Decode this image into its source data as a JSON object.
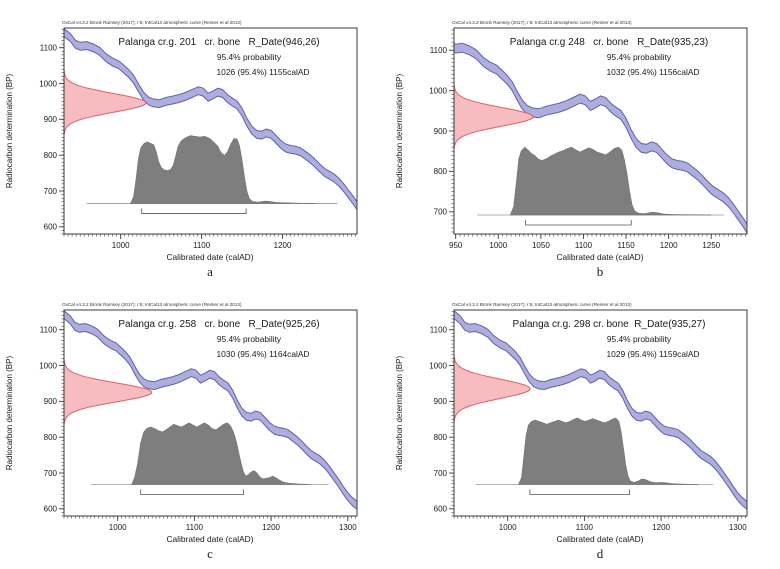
{
  "figure": {
    "attribution": "OxCal v4.3.2 Bronk Ramsey (2017); r:5; IntCal13 atmospheric curve (Reimer et al 2013)",
    "ylabel": "Radiocarbon determination (BP)",
    "xlabel": "Calibrated date (calAD)"
  },
  "colors": {
    "curve_fill": "#aeaedd",
    "curve_edge": "#5f5fae",
    "likelihood_fill": "#f7bcc0",
    "likelihood_edge": "#e06065",
    "posterior_fill": "#7e7e7e",
    "posterior_edge": "#6a6a6a",
    "baseline": "#9a9a9a",
    "axis": "#3c3c3c"
  },
  "calibration_curve": {
    "halfwidth_bp": 11,
    "points_calAD_BP": [
      [
        930,
        1142
      ],
      [
        938,
        1128
      ],
      [
        944,
        1110
      ],
      [
        950,
        1104
      ],
      [
        958,
        1106
      ],
      [
        966,
        1100
      ],
      [
        974,
        1090
      ],
      [
        982,
        1072
      ],
      [
        990,
        1060
      ],
      [
        998,
        1052
      ],
      [
        1004,
        1040
      ],
      [
        1010,
        1028
      ],
      [
        1016,
        1012
      ],
      [
        1022,
        988
      ],
      [
        1028,
        966
      ],
      [
        1034,
        952
      ],
      [
        1040,
        946
      ],
      [
        1048,
        944
      ],
      [
        1056,
        950
      ],
      [
        1064,
        954
      ],
      [
        1072,
        958
      ],
      [
        1080,
        964
      ],
      [
        1088,
        972
      ],
      [
        1096,
        980
      ],
      [
        1102,
        976
      ],
      [
        1108,
        962
      ],
      [
        1114,
        968
      ],
      [
        1120,
        976
      ],
      [
        1126,
        972
      ],
      [
        1132,
        958
      ],
      [
        1138,
        948
      ],
      [
        1144,
        940
      ],
      [
        1150,
        920
      ],
      [
        1156,
        892
      ],
      [
        1162,
        870
      ],
      [
        1168,
        858
      ],
      [
        1174,
        856
      ],
      [
        1180,
        862
      ],
      [
        1186,
        858
      ],
      [
        1192,
        844
      ],
      [
        1198,
        830
      ],
      [
        1204,
        820
      ],
      [
        1210,
        816
      ],
      [
        1216,
        814
      ],
      [
        1222,
        810
      ],
      [
        1228,
        800
      ],
      [
        1234,
        790
      ],
      [
        1240,
        778
      ],
      [
        1246,
        764
      ],
      [
        1252,
        752
      ],
      [
        1258,
        744
      ],
      [
        1264,
        736
      ],
      [
        1270,
        724
      ],
      [
        1276,
        708
      ],
      [
        1282,
        690
      ],
      [
        1288,
        672
      ],
      [
        1294,
        652
      ],
      [
        1300,
        634
      ],
      [
        1306,
        620
      ],
      [
        1312,
        610
      ]
    ]
  },
  "chart_data": [
    {
      "type": "area",
      "panel_letter": "a",
      "title": "Palanga cr.g. 201   cr. bone   R_Date(946,26)",
      "probability_label": "95.4% probability",
      "range_label": "1026 (95.4%) 1155calAD",
      "r_date_mean_bp": 946,
      "r_date_sigma": 26,
      "range_calAD": [
        1026,
        1155
      ],
      "xlim": [
        930,
        1292
      ],
      "ylim": [
        580,
        1155
      ],
      "x_major_ticks": [
        1000,
        1100,
        1200
      ],
      "x_minor_step": 5,
      "y_major_ticks": [
        600,
        700,
        800,
        900,
        1000,
        1100
      ],
      "y_minor_step": 10,
      "baseline_bp": 665,
      "baseline_span": [
        958,
        1268
      ],
      "likelihood_amp": 0.28,
      "posterior": [
        [
          1012,
          0
        ],
        [
          1016,
          0.1
        ],
        [
          1019,
          0.35
        ],
        [
          1022,
          0.65
        ],
        [
          1025,
          0.8
        ],
        [
          1029,
          0.86
        ],
        [
          1033,
          0.88
        ],
        [
          1037,
          0.86
        ],
        [
          1041,
          0.84
        ],
        [
          1044,
          0.74
        ],
        [
          1047,
          0.6
        ],
        [
          1050,
          0.52
        ],
        [
          1054,
          0.48
        ],
        [
          1058,
          0.47
        ],
        [
          1062,
          0.49
        ],
        [
          1065,
          0.55
        ],
        [
          1068,
          0.68
        ],
        [
          1071,
          0.82
        ],
        [
          1075,
          0.9
        ],
        [
          1080,
          0.94
        ],
        [
          1086,
          0.97
        ],
        [
          1092,
          0.96
        ],
        [
          1098,
          0.95
        ],
        [
          1104,
          0.96
        ],
        [
          1110,
          0.93
        ],
        [
          1115,
          0.88
        ],
        [
          1120,
          0.82
        ],
        [
          1124,
          0.73
        ],
        [
          1128,
          0.69
        ],
        [
          1132,
          0.74
        ],
        [
          1136,
          0.85
        ],
        [
          1140,
          0.93
        ],
        [
          1144,
          0.92
        ],
        [
          1147,
          0.82
        ],
        [
          1150,
          0.62
        ],
        [
          1153,
          0.38
        ],
        [
          1156,
          0.18
        ],
        [
          1159,
          0.07
        ],
        [
          1163,
          0.03
        ],
        [
          1170,
          0.02
        ],
        [
          1178,
          0.035
        ],
        [
          1184,
          0.03
        ],
        [
          1192,
          0.015
        ],
        [
          1205,
          0.01
        ],
        [
          1220,
          0.005
        ],
        [
          1240,
          0
        ]
      ]
    },
    {
      "type": "area",
      "panel_letter": "b",
      "title": "Palanga cr.g 248   cr. bone   R_Date(935,23)",
      "probability_label": "95.4% probability",
      "range_label": "1032 (95.4%) 1156calAD",
      "r_date_mean_bp": 935,
      "r_date_sigma": 23,
      "range_calAD": [
        1032,
        1156
      ],
      "xlim": [
        948,
        1292
      ],
      "ylim": [
        645,
        1155
      ],
      "x_major_ticks": [
        950,
        1000,
        1050,
        1100,
        1150,
        1200,
        1250
      ],
      "x_minor_step": 5,
      "y_major_ticks": [
        700,
        800,
        900,
        1000,
        1100
      ],
      "y_minor_step": 10,
      "baseline_bp": 692,
      "baseline_span": [
        975,
        1265
      ],
      "likelihood_amp": 0.27,
      "posterior": [
        [
          1014,
          0
        ],
        [
          1018,
          0.12
        ],
        [
          1021,
          0.45
        ],
        [
          1024,
          0.8
        ],
        [
          1027,
          0.92
        ],
        [
          1031,
          0.97
        ],
        [
          1035,
          0.93
        ],
        [
          1039,
          0.88
        ],
        [
          1043,
          0.85
        ],
        [
          1047,
          0.8
        ],
        [
          1051,
          0.78
        ],
        [
          1056,
          0.8
        ],
        [
          1061,
          0.84
        ],
        [
          1066,
          0.87
        ],
        [
          1071,
          0.9
        ],
        [
          1076,
          0.92
        ],
        [
          1081,
          0.95
        ],
        [
          1086,
          0.97
        ],
        [
          1091,
          0.93
        ],
        [
          1096,
          0.9
        ],
        [
          1101,
          0.93
        ],
        [
          1106,
          0.96
        ],
        [
          1111,
          0.94
        ],
        [
          1116,
          0.9
        ],
        [
          1121,
          0.88
        ],
        [
          1126,
          0.86
        ],
        [
          1131,
          0.9
        ],
        [
          1136,
          0.95
        ],
        [
          1141,
          0.97
        ],
        [
          1145,
          0.93
        ],
        [
          1148,
          0.8
        ],
        [
          1151,
          0.6
        ],
        [
          1154,
          0.35
        ],
        [
          1157,
          0.15
        ],
        [
          1160,
          0.06
        ],
        [
          1165,
          0.025
        ],
        [
          1172,
          0.02
        ],
        [
          1180,
          0.04
        ],
        [
          1186,
          0.035
        ],
        [
          1194,
          0.015
        ],
        [
          1205,
          0.008
        ],
        [
          1225,
          0.004
        ],
        [
          1250,
          0
        ]
      ]
    },
    {
      "type": "area",
      "panel_letter": "c",
      "title": "Palanga cr.g. 258   cr. bone   R_Date(925,26)",
      "probability_label": "95.4% probability",
      "range_label": "1030 (95.4%) 1164calAD",
      "r_date_mean_bp": 925,
      "r_date_sigma": 26,
      "range_calAD": [
        1030,
        1164
      ],
      "xlim": [
        930,
        1312
      ],
      "ylim": [
        580,
        1155
      ],
      "x_major_ticks": [
        1000,
        1100,
        1200,
        1300
      ],
      "x_minor_step": 5,
      "y_major_ticks": [
        600,
        700,
        800,
        900,
        1000,
        1100
      ],
      "y_minor_step": 10,
      "baseline_bp": 668,
      "baseline_span": [
        965,
        1275
      ],
      "likelihood_amp": 0.3,
      "posterior": [
        [
          1018,
          0
        ],
        [
          1022,
          0.1
        ],
        [
          1026,
          0.3
        ],
        [
          1030,
          0.6
        ],
        [
          1034,
          0.75
        ],
        [
          1038,
          0.8
        ],
        [
          1043,
          0.82
        ],
        [
          1048,
          0.8
        ],
        [
          1053,
          0.77
        ],
        [
          1058,
          0.75
        ],
        [
          1063,
          0.78
        ],
        [
          1068,
          0.82
        ],
        [
          1073,
          0.86
        ],
        [
          1078,
          0.84
        ],
        [
          1083,
          0.82
        ],
        [
          1088,
          0.85
        ],
        [
          1093,
          0.88
        ],
        [
          1098,
          0.85
        ],
        [
          1103,
          0.82
        ],
        [
          1108,
          0.85
        ],
        [
          1113,
          0.88
        ],
        [
          1118,
          0.85
        ],
        [
          1123,
          0.8
        ],
        [
          1128,
          0.78
        ],
        [
          1133,
          0.82
        ],
        [
          1138,
          0.86
        ],
        [
          1143,
          0.88
        ],
        [
          1147,
          0.84
        ],
        [
          1151,
          0.75
        ],
        [
          1155,
          0.6
        ],
        [
          1158,
          0.45
        ],
        [
          1161,
          0.3
        ],
        [
          1164,
          0.18
        ],
        [
          1167,
          0.12
        ],
        [
          1170,
          0.14
        ],
        [
          1174,
          0.18
        ],
        [
          1178,
          0.2
        ],
        [
          1182,
          0.16
        ],
        [
          1186,
          0.1
        ],
        [
          1190,
          0.08
        ],
        [
          1194,
          0.09
        ],
        [
          1198,
          0.1
        ],
        [
          1202,
          0.12
        ],
        [
          1206,
          0.1
        ],
        [
          1210,
          0.07
        ],
        [
          1215,
          0.04
        ],
        [
          1222,
          0.02
        ],
        [
          1232,
          0.01
        ],
        [
          1250,
          0
        ]
      ]
    },
    {
      "type": "area",
      "panel_letter": "d",
      "title": "Palanga cr.g. 298 cr. bone  R_Date(935,27)",
      "probability_label": "95.4% probability",
      "range_label": "1029 (95.4%) 1159calAD",
      "r_date_mean_bp": 935,
      "r_date_sigma": 27,
      "range_calAD": [
        1029,
        1159
      ],
      "xlim": [
        930,
        1312
      ],
      "ylim": [
        580,
        1155
      ],
      "x_major_ticks": [
        1000,
        1100,
        1200,
        1300
      ],
      "x_minor_step": 5,
      "y_major_ticks": [
        600,
        700,
        800,
        900,
        1000,
        1100
      ],
      "y_minor_step": 10,
      "baseline_bp": 668,
      "baseline_span": [
        958,
        1268
      ],
      "likelihood_amp": 0.26,
      "posterior": [
        [
          1014,
          0
        ],
        [
          1018,
          0.1
        ],
        [
          1021,
          0.4
        ],
        [
          1024,
          0.7
        ],
        [
          1027,
          0.85
        ],
        [
          1031,
          0.9
        ],
        [
          1036,
          0.92
        ],
        [
          1041,
          0.9
        ],
        [
          1046,
          0.88
        ],
        [
          1051,
          0.86
        ],
        [
          1056,
          0.88
        ],
        [
          1061,
          0.9
        ],
        [
          1066,
          0.92
        ],
        [
          1071,
          0.9
        ],
        [
          1076,
          0.88
        ],
        [
          1081,
          0.9
        ],
        [
          1086,
          0.93
        ],
        [
          1091,
          0.95
        ],
        [
          1096,
          0.92
        ],
        [
          1101,
          0.9
        ],
        [
          1106,
          0.92
        ],
        [
          1111,
          0.94
        ],
        [
          1116,
          0.92
        ],
        [
          1121,
          0.9
        ],
        [
          1126,
          0.88
        ],
        [
          1131,
          0.9
        ],
        [
          1136,
          0.93
        ],
        [
          1141,
          0.95
        ],
        [
          1145,
          0.9
        ],
        [
          1148,
          0.75
        ],
        [
          1151,
          0.52
        ],
        [
          1154,
          0.28
        ],
        [
          1157,
          0.12
        ],
        [
          1160,
          0.05
        ],
        [
          1165,
          0.03
        ],
        [
          1170,
          0.05
        ],
        [
          1175,
          0.08
        ],
        [
          1180,
          0.07
        ],
        [
          1186,
          0.04
        ],
        [
          1192,
          0.025
        ],
        [
          1200,
          0.03
        ],
        [
          1206,
          0.025
        ],
        [
          1214,
          0.012
        ],
        [
          1228,
          0.006
        ],
        [
          1248,
          0
        ]
      ]
    }
  ]
}
